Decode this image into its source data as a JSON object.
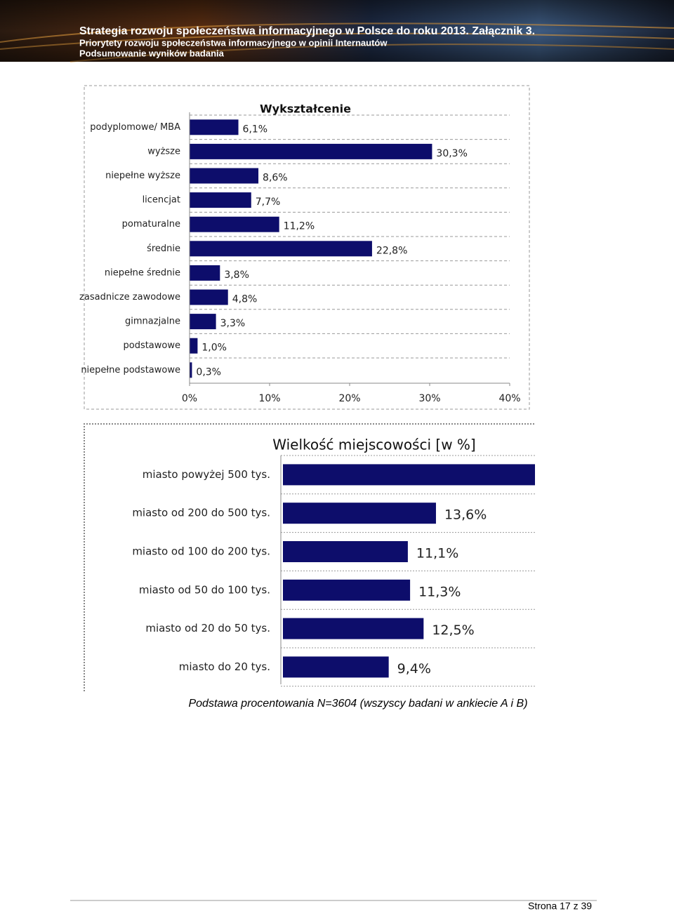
{
  "header": {
    "title": "Strategia rozwoju społeczeństwa informacyjnego w Polsce do roku 2013. Załącznik 3.",
    "subtitle": "Priorytety rozwoju społeczeństwa informacyjnego w opinii Internautów",
    "section": "Podsumowanie wyników badania"
  },
  "chart_data": [
    {
      "type": "bar",
      "orientation": "horizontal",
      "title": "Wykształcenie",
      "categories": [
        "podyplomowe/ MBA",
        "wyższe",
        "niepełne wyższe",
        "licencjat",
        "pomaturalne",
        "średnie",
        "niepełne średnie",
        "zasadnicze zawodowe",
        "gimnazjalne",
        "podstawowe",
        "niepełne podstawowe"
      ],
      "values": [
        6.1,
        30.3,
        8.6,
        7.7,
        11.2,
        22.8,
        3.8,
        4.8,
        3.3,
        1.0,
        0.3
      ],
      "value_labels": [
        "6,1%",
        "30,3%",
        "8,6%",
        "7,7%",
        "11,2%",
        "22,8%",
        "3,8%",
        "4,8%",
        "3,3%",
        "1,0%",
        "0,3%"
      ],
      "color": "#0d0d6b",
      "xlim": [
        0,
        40
      ],
      "xticks": [
        {
          "value": 0,
          "label": "0%"
        },
        {
          "value": 10,
          "label": "10%"
        },
        {
          "value": 20,
          "label": "20%"
        },
        {
          "value": 30,
          "label": "30%"
        },
        {
          "value": 40,
          "label": "40%"
        }
      ],
      "grid": true
    },
    {
      "type": "bar",
      "orientation": "horizontal",
      "title": "Wielkość miejscowości [w %]",
      "categories": [
        "miasto powyżej 500 tys.",
        "miasto od 200 do 500 tys.",
        "miasto od 100 do 200 tys.",
        "miasto od 50 do 100 tys.",
        "miasto od 20 do 50 tys.",
        "miasto do 20 tys."
      ],
      "values": [
        22.4,
        13.6,
        11.1,
        11.3,
        12.5,
        9.4
      ],
      "value_labels": [
        null,
        "13,6%",
        "11,1%",
        "11,3%",
        "12,5%",
        "9,4%"
      ],
      "color": "#0d0d6b",
      "grid": true
    }
  ],
  "note": "Podstawa procentowania N=3604 (wszyscy badani w ankiecie A i B)",
  "footer": "Strona 17 z 39"
}
